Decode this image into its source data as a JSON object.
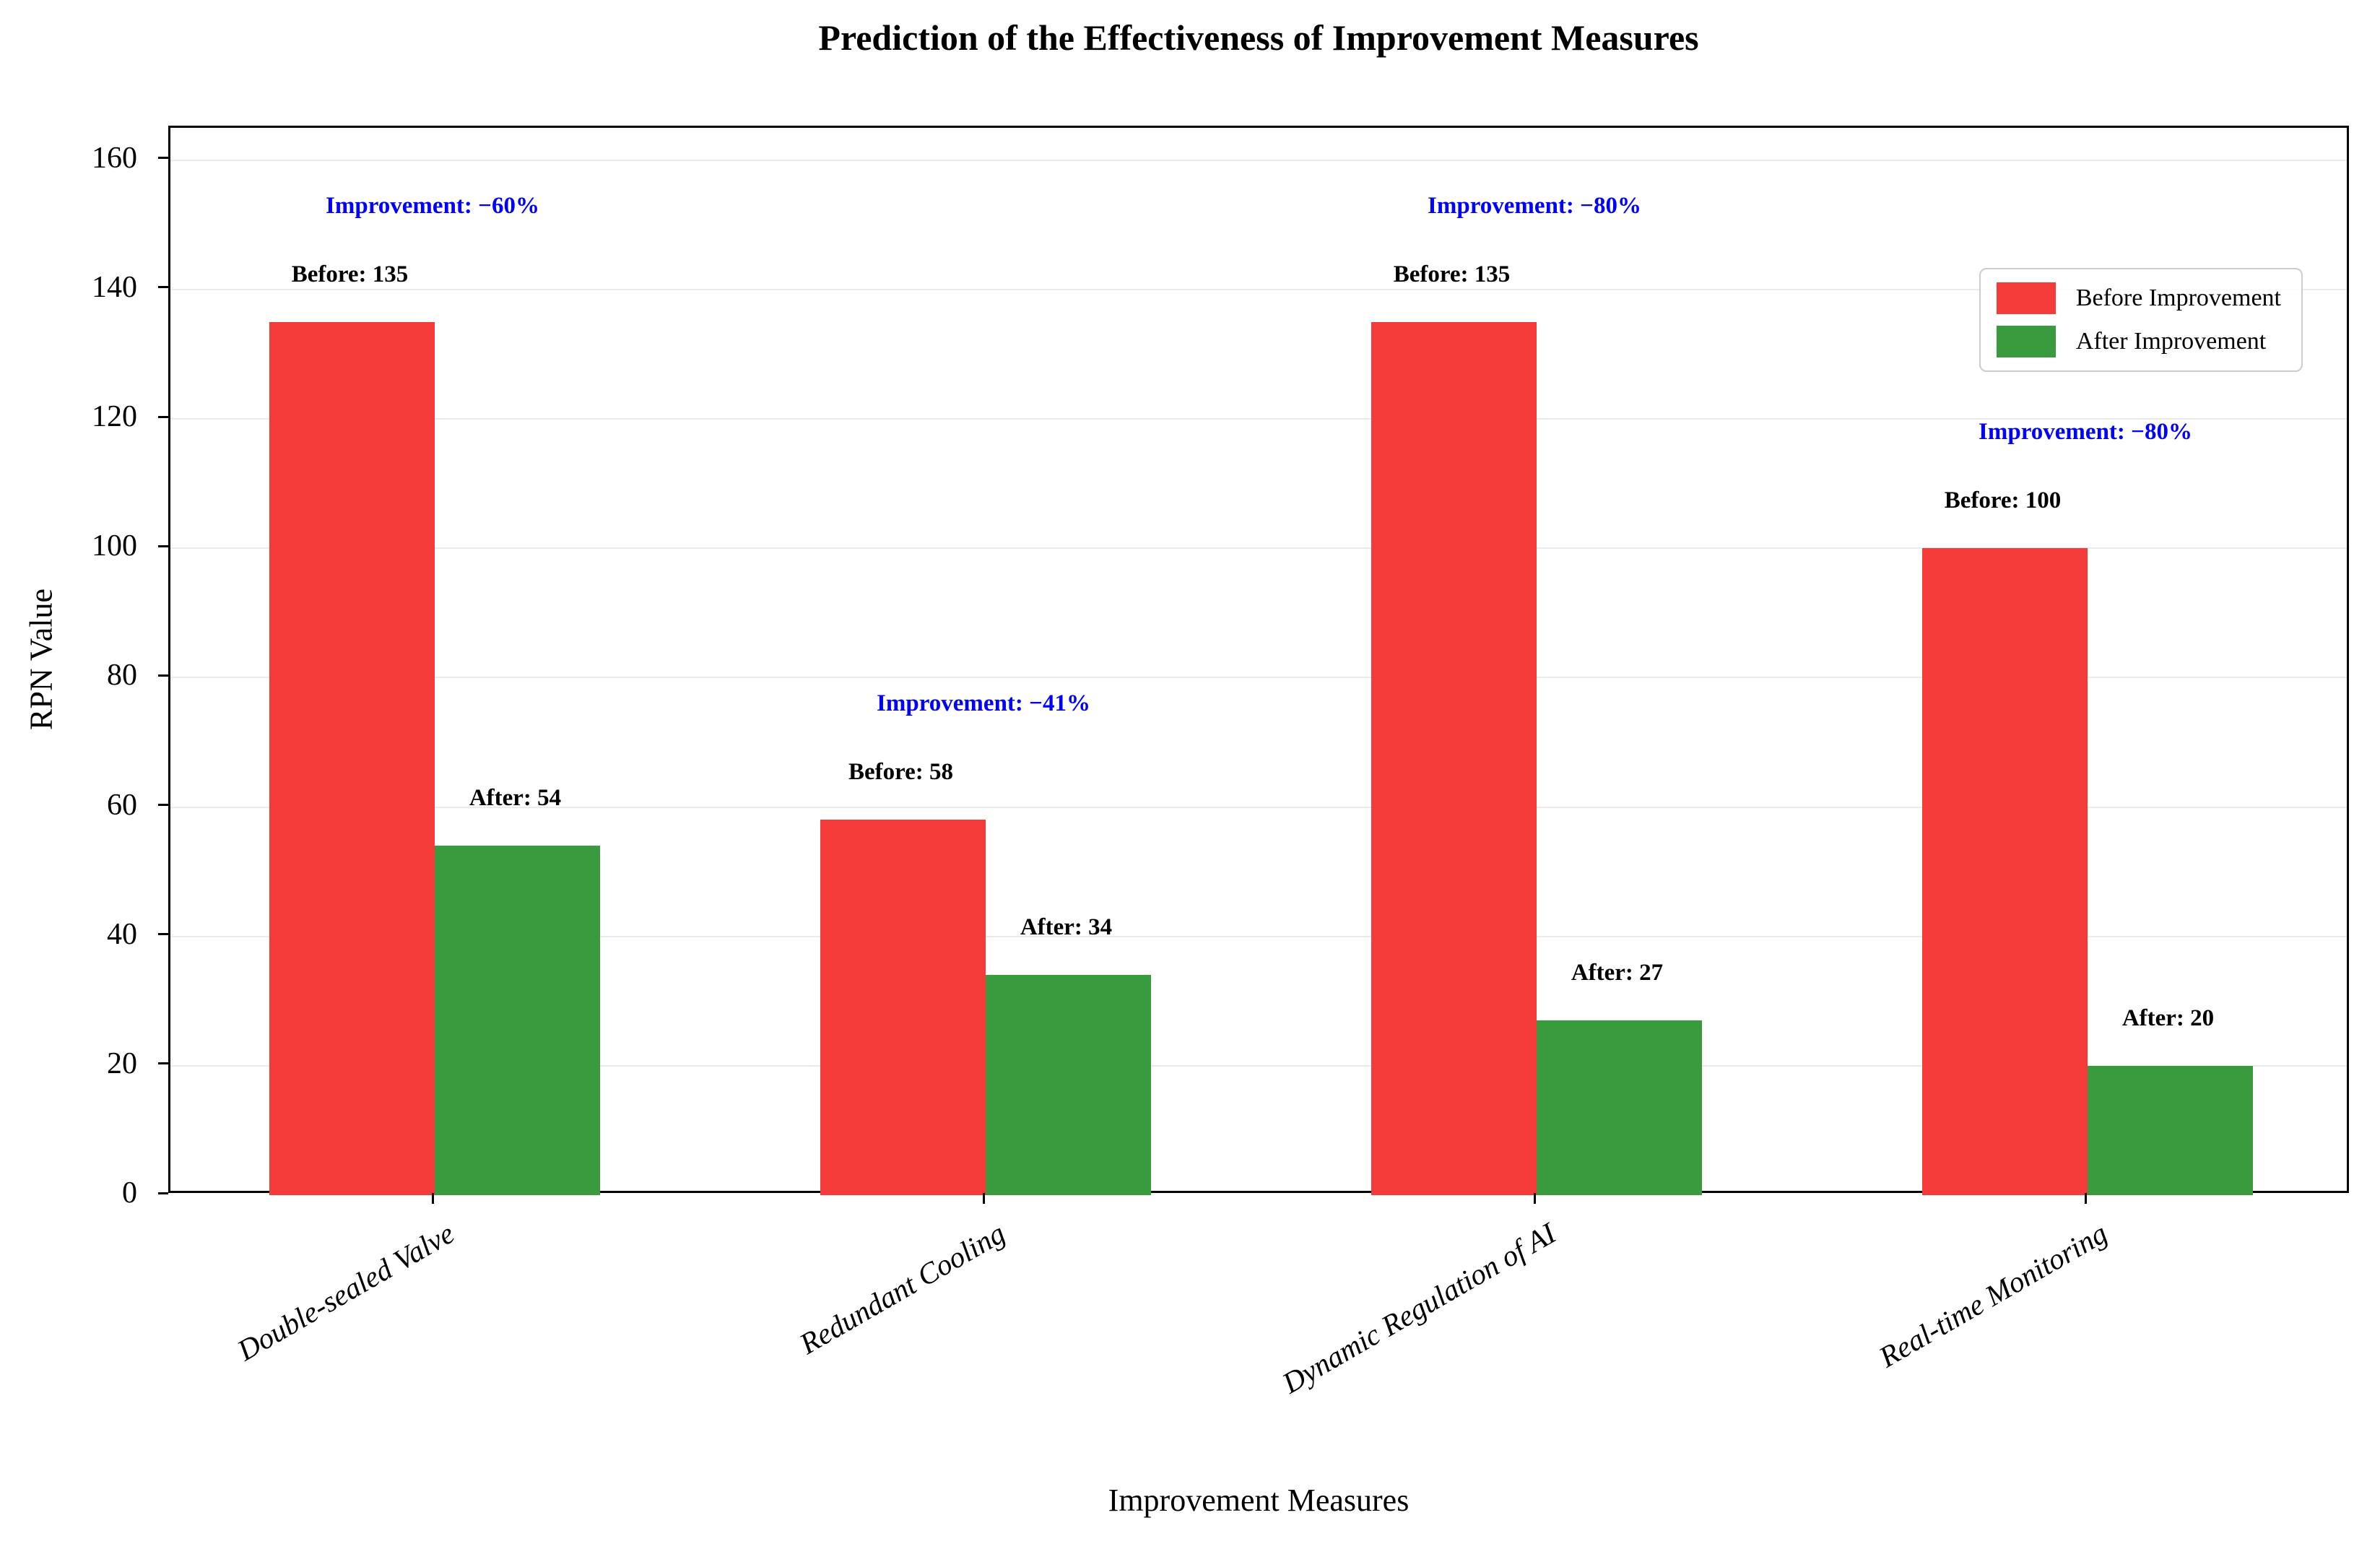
{
  "chart_data": {
    "type": "bar",
    "title": "Prediction of the Effectiveness of Improvement Measures",
    "xlabel": "Improvement Measures",
    "ylabel": "RPN Value",
    "categories": [
      "Double-sealed Valve",
      "Redundant Cooling",
      "Dynamic Regulation of AI",
      "Real-time Monitoring"
    ],
    "series": [
      {
        "name": "Before Improvement",
        "color": "#f53a3a",
        "values": [
          135,
          58,
          135,
          100
        ]
      },
      {
        "name": "After Improvement",
        "color": "#3a9a3e",
        "values": [
          54,
          34,
          27,
          20
        ]
      }
    ],
    "bar_value_labels": {
      "before": [
        "Before: 135",
        "Before: 58",
        "Before: 135",
        "Before: 100"
      ],
      "after": [
        "After: 54",
        "After: 34",
        "After: 27",
        "After: 20"
      ]
    },
    "improvement_labels": [
      "Improvement: −60%",
      "Improvement: −41%",
      "Improvement: −80%",
      "Improvement: −80%"
    ],
    "annotation_color": "#0000ff",
    "value_label_color": "#000000",
    "yticks": [
      0,
      20,
      40,
      60,
      80,
      100,
      120,
      140,
      160
    ],
    "ylim": [
      0,
      165
    ],
    "grid": true,
    "grid_color": "#ebebeb",
    "legend_position": "upper right"
  }
}
